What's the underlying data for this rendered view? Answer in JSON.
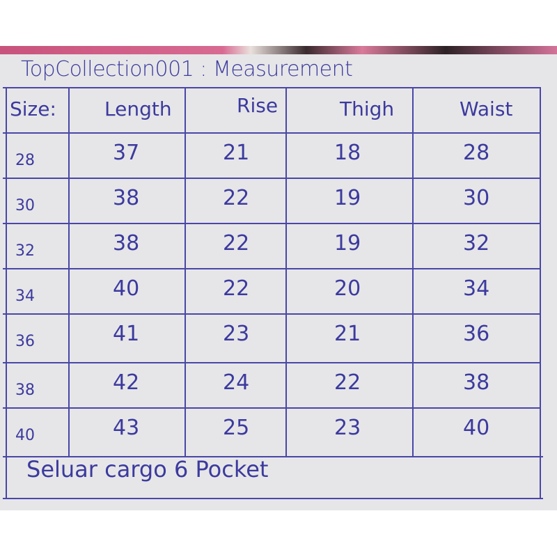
{
  "title": "TopCollection001 : Measurement",
  "headers": [
    "Size:",
    "Length",
    "Rise",
    "Thigh",
    "Waist"
  ],
  "rows": [
    {
      "size": "28",
      "length": "37",
      "rise": "21",
      "thigh": "18",
      "waist": "28"
    },
    {
      "size": "30",
      "length": "38",
      "rise": "22",
      "thigh": "19",
      "waist": "30"
    },
    {
      "size": "32",
      "length": "38",
      "rise": "22",
      "thigh": "19",
      "waist": "32"
    },
    {
      "size": "34",
      "length": "40",
      "rise": "22",
      "thigh": "20",
      "waist": "34"
    },
    {
      "size": "36",
      "length": "41",
      "rise": "23",
      "thigh": "21",
      "waist": "36"
    },
    {
      "size": "38",
      "length": "42",
      "rise": "24",
      "thigh": "22",
      "waist": "38"
    },
    {
      "size": "40",
      "length": "43",
      "rise": "25",
      "thigh": "23",
      "waist": "40"
    }
  ],
  "footer": "Seluar cargo 6 Pocket",
  "colors": {
    "ink": "#3c3a9e",
    "paper": "#e6e6e8"
  }
}
